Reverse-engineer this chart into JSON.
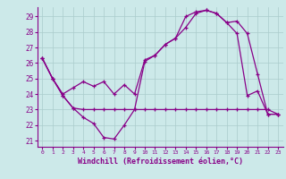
{
  "xlabel": "Windchill (Refroidissement éolien,°C)",
  "bg_color": "#cce9e9",
  "line_color": "#880088",
  "grid_color": "#aacccc",
  "text_color": "#880088",
  "ylim": [
    20.6,
    29.6
  ],
  "xlim": [
    -0.5,
    23.5
  ],
  "yticks": [
    21,
    22,
    23,
    24,
    25,
    26,
    27,
    28,
    29
  ],
  "xticks": [
    0,
    1,
    2,
    3,
    4,
    5,
    6,
    7,
    8,
    9,
    10,
    11,
    12,
    13,
    14,
    15,
    16,
    17,
    18,
    19,
    20,
    21,
    22,
    23
  ],
  "line1_y": [
    26.3,
    25.0,
    23.9,
    23.1,
    22.5,
    22.1,
    21.2,
    21.1,
    22.0,
    23.0,
    26.1,
    26.5,
    27.2,
    27.6,
    29.0,
    29.3,
    29.4,
    29.2,
    28.6,
    27.9,
    23.9,
    24.2,
    22.7,
    22.7
  ],
  "line2_y": [
    26.3,
    25.0,
    24.0,
    24.4,
    24.8,
    24.5,
    24.8,
    24.0,
    24.6,
    24.0,
    26.2,
    26.5,
    27.2,
    27.6,
    28.3,
    29.2,
    29.4,
    29.2,
    28.6,
    28.7,
    27.9,
    25.3,
    22.7,
    22.7
  ],
  "line3_y": [
    26.3,
    25.0,
    23.9,
    23.1,
    23.0,
    23.0,
    23.0,
    23.0,
    23.0,
    23.0,
    23.0,
    23.0,
    23.0,
    23.0,
    23.0,
    23.0,
    23.0,
    23.0,
    23.0,
    23.0,
    23.0,
    23.0,
    23.0,
    22.7
  ]
}
